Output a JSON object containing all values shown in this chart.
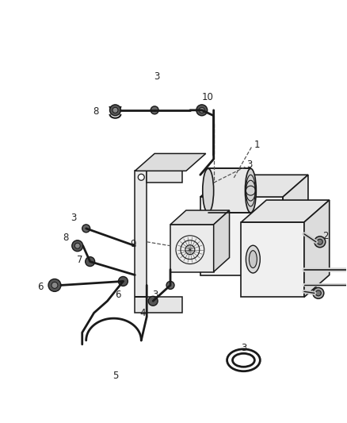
{
  "bg_color": "#ffffff",
  "line_color": "#1a1a1a",
  "label_color": "#222222",
  "fig_width": 4.38,
  "fig_height": 5.33,
  "dpi": 100,
  "label_fontsize": 8.5
}
